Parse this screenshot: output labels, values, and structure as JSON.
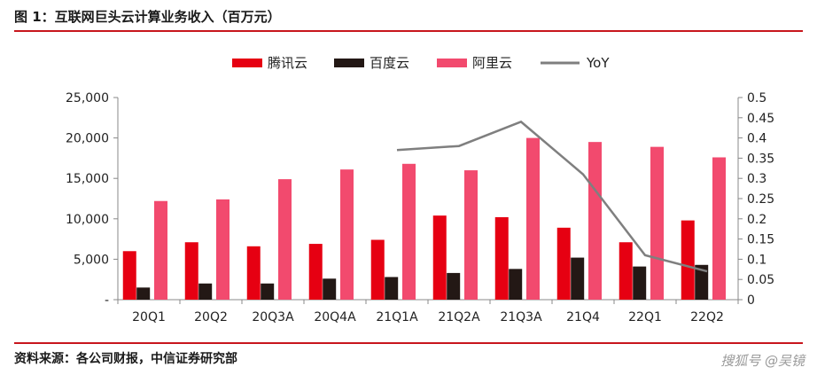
{
  "title": "图 1：互联网巨头云计算业务收入（百万元）",
  "source": "资料来源：各公司财报，中信证券研究部",
  "watermark": "搜狐号 @吴镜",
  "chart_data": {
    "type": "bar",
    "categories": [
      "20Q1",
      "20Q2",
      "20Q3A",
      "20Q4A",
      "21Q1A",
      "21Q2A",
      "21Q3A",
      "21Q4",
      "22Q1",
      "22Q2"
    ],
    "series": [
      {
        "name": "腾讯云",
        "type": "bar",
        "color": "#e60012",
        "values": [
          6000,
          7100,
          6600,
          6900,
          7400,
          10400,
          10200,
          8900,
          7100,
          9800
        ]
      },
      {
        "name": "百度云",
        "type": "bar",
        "color": "#231815",
        "values": [
          1500,
          2000,
          2000,
          2600,
          2800,
          3300,
          3800,
          5200,
          4100,
          4300
        ]
      },
      {
        "name": "阿里云",
        "type": "bar",
        "color": "#f24a6e",
        "values": [
          12200,
          12400,
          14900,
          16100,
          16800,
          16000,
          20000,
          19500,
          18900,
          17600
        ]
      },
      {
        "name": "YoY",
        "type": "line",
        "axis": "right",
        "color": "#7f7f7f",
        "values": [
          null,
          null,
          null,
          null,
          0.37,
          0.38,
          0.44,
          0.31,
          0.11,
          0.07
        ]
      }
    ],
    "y_left": {
      "ticks": [
        "-",
        "5,000",
        "10,000",
        "15,000",
        "20,000",
        "25,000"
      ],
      "range": [
        0,
        25000
      ]
    },
    "y_right": {
      "ticks": [
        "0",
        "0.05",
        "0.1",
        "0.15",
        "0.2",
        "0.25",
        "0.3",
        "0.35",
        "0.4",
        "0.45",
        "0.5"
      ],
      "range": [
        0,
        0.5
      ]
    },
    "legend": "top-center"
  }
}
